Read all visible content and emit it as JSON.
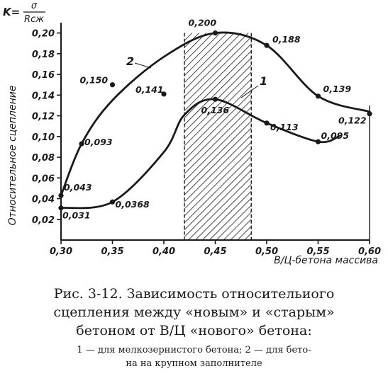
{
  "chart_data": {
    "type": "line",
    "formula": {
      "lhs": "K=",
      "numerator": "σ",
      "denominator": "Rсж"
    },
    "ylabel": "Относительное сцепление",
    "xlabel": "В/Ц-бетона массива",
    "x_ticks": [
      "0,30",
      "0,35",
      "0,40",
      "0,45",
      "0,50",
      "0,55",
      "0,60"
    ],
    "y_ticks": [
      "0,02",
      "0,04",
      "0,06",
      "0,08",
      "0,10",
      "0,12",
      "0,14",
      "0,16",
      "0,18",
      "0,20"
    ],
    "xlim": [
      0.3,
      0.6
    ],
    "ylim": [
      0.0,
      0.21
    ],
    "hatched_band": [
      0.42,
      0.485
    ],
    "series": [
      {
        "name": "2",
        "x": [
          0.3,
          0.32,
          0.35,
          0.4,
          0.45,
          0.5,
          0.55,
          0.6
        ],
        "y": [
          0.043,
          0.093,
          0.15,
          0.141,
          0.2,
          0.188,
          0.139,
          0.122
        ],
        "labels": [
          "0,043",
          "0,093",
          "0,150",
          "0,141",
          "0,200",
          "0,188",
          "0,139",
          "0,122"
        ],
        "curve_y": [
          0.043,
          0.093,
          0.135,
          0.177,
          0.2,
          0.188,
          0.139,
          0.124
        ]
      },
      {
        "name": "1",
        "x": [
          0.3,
          0.35,
          0.45,
          0.5,
          0.55
        ],
        "y": [
          0.031,
          0.0368,
          0.136,
          0.113,
          0.095
        ],
        "labels": [
          "0,031",
          "0,0368",
          "0,136",
          "0,113",
          "0,095"
        ],
        "curve_x": [
          0.3,
          0.35,
          0.4,
          0.42,
          0.45,
          0.5,
          0.55,
          0.57
        ],
        "curve_y": [
          0.031,
          0.0368,
          0.085,
          0.121,
          0.136,
          0.113,
          0.095,
          0.1
        ]
      }
    ]
  },
  "caption": {
    "line1": "Рис. 3-12. Зависимость относительиого",
    "line2": "сцепления между «новым» и «старым»",
    "line3": "бетоном от В/Ц «нового» бетона:",
    "note1": "1 — для мелкозернистого бетона; 2 — для бето-",
    "note2": "на на крупном заполнителе"
  }
}
